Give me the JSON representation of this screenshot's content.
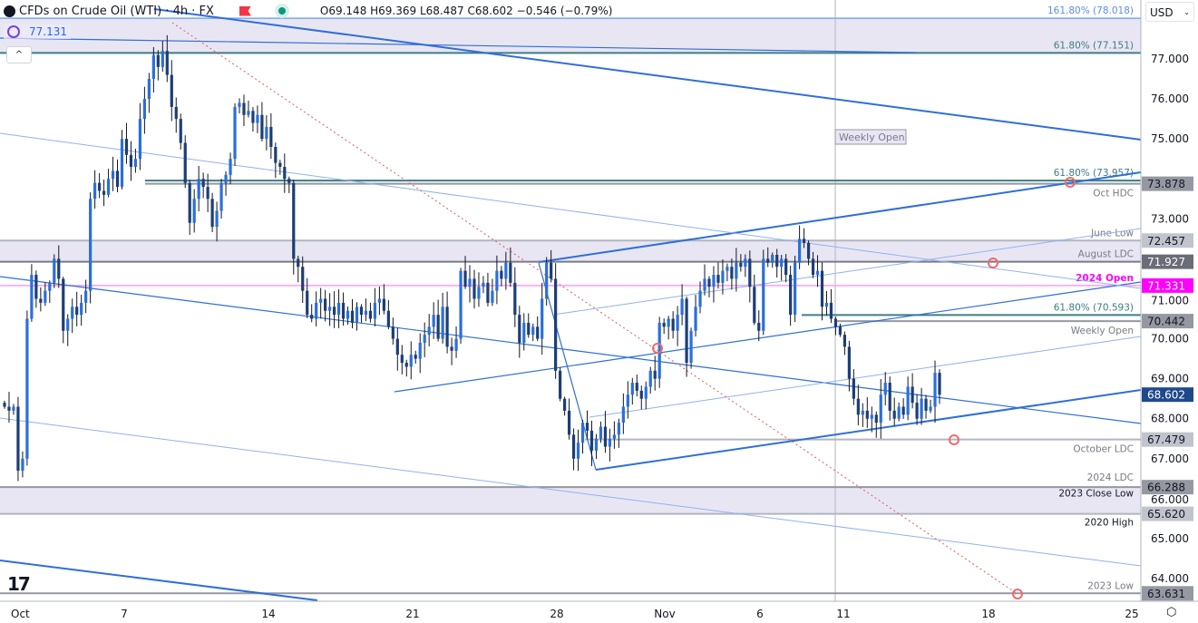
{
  "header": {
    "symbol_title": "CFDs on Crude Oil (WTI) · 4h · FX",
    "ohlc": "O69.148 H69.369 L68.487 C68.602 −0.546 (−0.79%)",
    "indicator_value": "77.131",
    "currency": "USD"
  },
  "colors": {
    "up": "#2a6fdb",
    "down": "#1c3d78",
    "trend": "#2f6fd8",
    "fib": "#3d7d85",
    "level": "#9598a1",
    "open_2024": "#ff00ff",
    "zone": "#e9e6f4",
    "dotted": "#e05a5a"
  },
  "chart_data": {
    "type": "candlestick",
    "symbol": "CFDs on Crude Oil (WTI)",
    "interval": "4h",
    "ylim": [
      63.5,
      78.4
    ],
    "y_ticks": [
      "77.000",
      "76.000",
      "75.000",
      "73.000",
      "71.000",
      "70.000",
      "69.000",
      "68.000",
      "67.000",
      "66.000",
      "65.000",
      "64.000"
    ],
    "x_ticks": [
      "Oct",
      "7",
      "14",
      "21",
      "28",
      "Nov",
      "6",
      "11",
      "18",
      "25"
    ],
    "closes_approx": [
      68.3,
      68.2,
      68.3,
      66.7,
      67.0,
      70.5,
      71.6,
      71.0,
      70.9,
      71.2,
      71.4,
      72.0,
      71.5,
      70.2,
      70.5,
      70.8,
      70.6,
      70.9,
      71.2,
      73.5,
      73.9,
      73.7,
      73.6,
      74.0,
      74.2,
      73.8,
      75.0,
      74.6,
      74.3,
      74.5,
      75.5,
      76.0,
      76.5,
      77.1,
      76.8,
      77.2,
      76.6,
      75.8,
      75.5,
      74.9,
      73.9,
      72.9,
      73.5,
      74.0,
      73.8,
      73.5,
      72.8,
      73.2,
      73.9,
      74.1,
      74.5,
      75.8,
      75.9,
      75.6,
      75.7,
      75.4,
      75.6,
      75.0,
      75.3,
      74.8,
      74.4,
      74.3,
      74.0,
      73.9,
      72.0,
      71.8,
      71.2,
      70.6,
      70.5,
      70.9,
      71.0,
      70.7,
      70.8,
      70.6,
      70.9,
      70.5,
      70.7,
      70.4,
      70.8,
      70.6,
      70.7,
      70.5,
      70.9,
      71.0,
      70.7,
      70.3,
      70.0,
      69.6,
      69.4,
      69.3,
      69.6,
      69.5,
      69.9,
      70.1,
      70.3,
      70.6,
      70.0,
      70.8,
      69.8,
      69.7,
      70.0,
      71.7,
      71.3,
      71.5,
      71.0,
      71.3,
      71.4,
      70.9,
      71.2,
      71.7,
      71.5,
      71.9,
      71.4,
      70.6,
      69.9,
      70.4,
      70.1,
      70.3,
      70.0,
      71.0,
      71.9,
      71.5,
      69.2,
      68.5,
      68.2,
      67.6,
      67.0,
      67.4,
      67.9,
      67.7,
      67.2,
      67.5,
      67.8,
      67.3,
      67.5,
      67.6,
      67.9,
      68.3,
      68.6,
      68.9,
      68.7,
      68.5,
      68.8,
      69.2,
      69.0,
      70.4,
      70.3,
      70.5,
      70.2,
      70.6,
      71.0,
      69.4,
      70.2,
      70.8,
      71.2,
      71.5,
      71.3,
      71.6,
      71.4,
      71.7,
      71.8,
      71.5,
      71.9,
      71.8,
      72.0,
      71.3,
      70.4,
      70.2,
      72.0,
      71.9,
      72.1,
      71.8,
      72.0,
      71.6,
      70.6,
      71.9,
      72.5,
      72.4,
      72.0,
      71.6,
      71.7,
      70.8,
      70.9,
      70.5,
      70.3,
      70.1,
      69.8,
      69.0,
      68.5,
      68.1,
      68.2,
      68.0,
      68.1,
      67.9,
      68.6,
      68.9,
      68.2,
      68.0,
      68.3,
      68.1,
      68.8,
      68.4,
      68.0,
      68.5,
      68.2,
      68.3,
      69.148,
      68.602
    ],
    "last_price": "68.602",
    "levels": [
      {
        "price": 78.018,
        "label": "161.80% (78.018)",
        "kind": "fib_light"
      },
      {
        "price": 77.151,
        "label": "61.80% (77.151)",
        "kind": "fib"
      },
      {
        "price": 73.957,
        "label": "61.80% (73.957)",
        "kind": "fib"
      },
      {
        "price": 73.878,
        "label": "Oct HDC",
        "badge": "73.878",
        "kind": "level"
      },
      {
        "price": 72.457,
        "label": "June Low",
        "badge": "72.457",
        "kind": "level_light"
      },
      {
        "price": 71.927,
        "label": "August LDC",
        "badge": "71.927",
        "kind": "level_dark"
      },
      {
        "price": 71.331,
        "label": "2024 Open",
        "badge": "71.331",
        "kind": "open"
      },
      {
        "price": 70.593,
        "label": "61.80% (70.593)",
        "kind": "fib"
      },
      {
        "price": 70.442,
        "label": "Weekly Open",
        "badge": "70.442",
        "kind": "level"
      },
      {
        "price": 67.479,
        "label": "October LDC",
        "badge": "67.479",
        "kind": "level_light"
      },
      {
        "price": 66.288,
        "label": "2024 LDC",
        "badge": "66.288",
        "kind": "level"
      },
      {
        "price": 65.62,
        "label": "2023 Close Low",
        "label2": "2020 High",
        "badge": "65.620",
        "kind": "level_light"
      },
      {
        "price": 63.631,
        "label": "2023 Low",
        "badge": "63.631",
        "kind": "level"
      }
    ],
    "zones": [
      [
        77.151,
        78.018
      ],
      [
        71.927,
        72.457
      ],
      [
        65.62,
        66.288
      ]
    ],
    "weekly_open_marker": "Weekly Open"
  }
}
